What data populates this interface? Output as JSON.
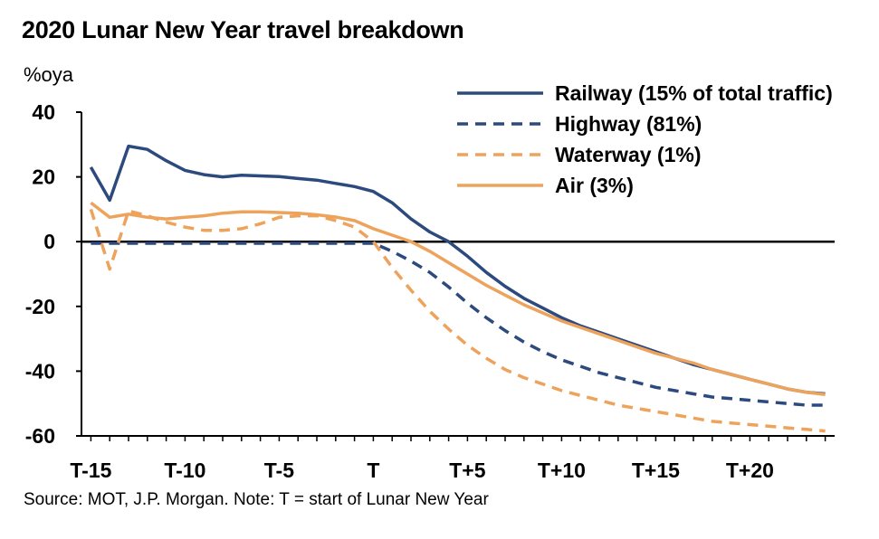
{
  "chart_data": {
    "type": "line",
    "title": "2020 Lunar New Year travel breakdown",
    "ylabel": "%oya",
    "xlabel": "",
    "source_note": "Source: MOT, J.P. Morgan. Note: T = start of Lunar New Year",
    "ylim": [
      -60,
      40
    ],
    "yticks": [
      40,
      20,
      0,
      -20,
      -40,
      -60
    ],
    "xlim": [
      -15.5,
      24.5
    ],
    "xticks": [
      {
        "label": "T-15",
        "value": -15
      },
      {
        "label": "T-10",
        "value": -10
      },
      {
        "label": "T-5",
        "value": -5
      },
      {
        "label": "T",
        "value": 0
      },
      {
        "label": "T+5",
        "value": 5
      },
      {
        "label": "T+10",
        "value": 10
      },
      {
        "label": "T+15",
        "value": 15
      },
      {
        "label": "T+20",
        "value": 20
      }
    ],
    "x": [
      -15,
      -14,
      -13,
      -12,
      -11,
      -10,
      -9,
      -8,
      -7,
      -6,
      -5,
      -4,
      -3,
      -2,
      -1,
      0,
      1,
      2,
      3,
      4,
      5,
      6,
      7,
      8,
      9,
      10,
      11,
      12,
      13,
      14,
      15,
      16,
      17,
      18,
      19,
      20,
      21,
      22,
      23,
      24
    ],
    "zero_line": true,
    "grid": false,
    "legend_position": "top-right",
    "series": [
      {
        "name": "Railway (15% of total traffic)",
        "color": "#2c4a7e",
        "dash": "solid",
        "values": [
          23,
          12.8,
          29.5,
          28.5,
          25,
          22,
          20.7,
          20,
          20.5,
          20.3,
          20.1,
          19.5,
          19,
          18,
          17,
          15.5,
          12,
          7,
          3,
          0,
          -4.5,
          -9.5,
          -13.8,
          -17.5,
          -20.5,
          -23.5,
          -26,
          -28,
          -30,
          -32,
          -34,
          -36,
          -38,
          -39.5,
          -41,
          -42.5,
          -44,
          -45.5,
          -46.5,
          -47
        ]
      },
      {
        "name": "Highway (81%)",
        "color": "#2c4a7e",
        "dash": "dashed",
        "values": [
          -0.5,
          -0.5,
          -0.5,
          -0.5,
          -0.5,
          -0.5,
          -0.5,
          -0.5,
          -0.5,
          -0.5,
          -0.5,
          -0.5,
          -0.5,
          -0.5,
          -0.5,
          -0.5,
          -3,
          -6,
          -9.5,
          -14,
          -19,
          -23.5,
          -27.5,
          -31,
          -34,
          -36.5,
          -38.5,
          -40.5,
          -42,
          -43.5,
          -45,
          -46,
          -47,
          -48,
          -48.5,
          -49,
          -49.5,
          -50,
          -50.5,
          -50.5
        ]
      },
      {
        "name": "Waterway (1%)",
        "color": "#eea35c",
        "dash": "dashed",
        "values": [
          10,
          -8.5,
          9.5,
          8,
          6,
          4.5,
          3.5,
          3.5,
          4,
          5.5,
          7.5,
          8,
          8,
          6.5,
          4.5,
          0,
          -8,
          -15,
          -21.5,
          -27,
          -32,
          -36,
          -39.5,
          -42,
          -44,
          -46,
          -47.5,
          -49,
          -50.5,
          -51.5,
          -52.5,
          -53.5,
          -54.5,
          -55.5,
          -56,
          -56.5,
          -57,
          -57.5,
          -58,
          -58.5
        ]
      },
      {
        "name": "Air (3%)",
        "color": "#eea35c",
        "dash": "solid",
        "values": [
          12,
          7.5,
          8.5,
          7.5,
          7,
          7.5,
          8,
          8.8,
          9.2,
          9.2,
          9,
          8.8,
          8.3,
          7.6,
          6.5,
          4,
          2,
          0,
          -3,
          -6.5,
          -10,
          -13.5,
          -16.5,
          -19.5,
          -22,
          -24.5,
          -26.5,
          -28.5,
          -30.5,
          -32.5,
          -34.5,
          -36,
          -37.5,
          -39.5,
          -41,
          -42.5,
          -44,
          -45.5,
          -46.5,
          -47.2
        ]
      }
    ]
  }
}
